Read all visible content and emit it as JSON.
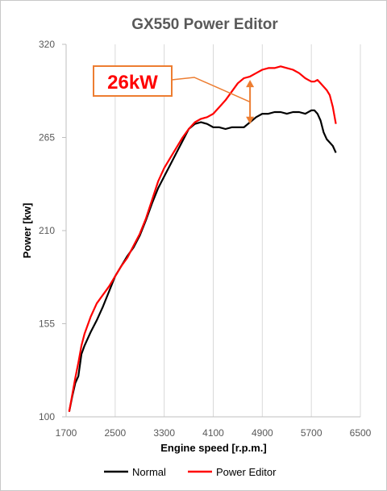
{
  "chart_data": {
    "type": "line",
    "title": "GX550 Power Editor",
    "xlabel": "Engine speed [r.p.m.]",
    "ylabel": "Power [kw]",
    "xlim": [
      1700,
      6500
    ],
    "ylim": [
      100,
      320
    ],
    "x_ticks": [
      1700,
      2500,
      3300,
      4100,
      4900,
      5700,
      6500
    ],
    "y_ticks": [
      100,
      155,
      210,
      265,
      320
    ],
    "grid": "vertical",
    "legend_position": "bottom",
    "annotation": {
      "text": "26kW",
      "at_x": 4700,
      "from_y": 273,
      "to_y": 299
    },
    "series": [
      {
        "name": "Normal",
        "color": "#000000",
        "x": [
          1750,
          1800,
          1850,
          1900,
          1950,
          2000,
          2100,
          2200,
          2300,
          2400,
          2500,
          2600,
          2700,
          2800,
          2900,
          3000,
          3100,
          3200,
          3300,
          3400,
          3500,
          3600,
          3700,
          3800,
          3900,
          4000,
          4100,
          4200,
          4300,
          4400,
          4500,
          4600,
          4700,
          4800,
          4900,
          5000,
          5100,
          5200,
          5300,
          5400,
          5500,
          5600,
          5700,
          5750,
          5800,
          5850,
          5900,
          5950,
          6000,
          6050,
          6100
        ],
        "values": [
          103,
          112,
          120,
          124,
          137,
          142,
          150,
          157,
          165,
          174,
          183,
          189,
          195,
          200,
          207,
          216,
          226,
          235,
          242,
          249,
          256,
          263,
          270,
          273,
          274,
          273,
          271,
          271,
          270,
          271,
          271,
          271,
          274,
          277,
          279,
          279,
          280,
          280,
          279,
          280,
          280,
          279,
          281,
          281,
          279,
          275,
          268,
          264,
          262,
          260,
          256
        ]
      },
      {
        "name": "Power Editor",
        "color": "#ff0000",
        "x": [
          1750,
          1800,
          1850,
          1900,
          1950,
          2000,
          2100,
          2200,
          2300,
          2400,
          2500,
          2600,
          2700,
          2800,
          2900,
          3000,
          3100,
          3200,
          3300,
          3400,
          3500,
          3600,
          3700,
          3800,
          3900,
          4000,
          4100,
          4200,
          4300,
          4400,
          4500,
          4600,
          4700,
          4800,
          4900,
          5000,
          5100,
          5200,
          5300,
          5400,
          5500,
          5600,
          5700,
          5750,
          5800,
          5850,
          5900,
          5950,
          6000,
          6050,
          6100
        ],
        "values": [
          103,
          113,
          123,
          132,
          142,
          149,
          159,
          167,
          172,
          177,
          183,
          189,
          194,
          201,
          208,
          217,
          228,
          239,
          247,
          253,
          259,
          265,
          270,
          274,
          276,
          277,
          279,
          283,
          287,
          292,
          297,
          300,
          301,
          303,
          305,
          306,
          306,
          307,
          306,
          305,
          303,
          300,
          298,
          298,
          299,
          297,
          295,
          293,
          290,
          283,
          273
        ]
      }
    ]
  }
}
